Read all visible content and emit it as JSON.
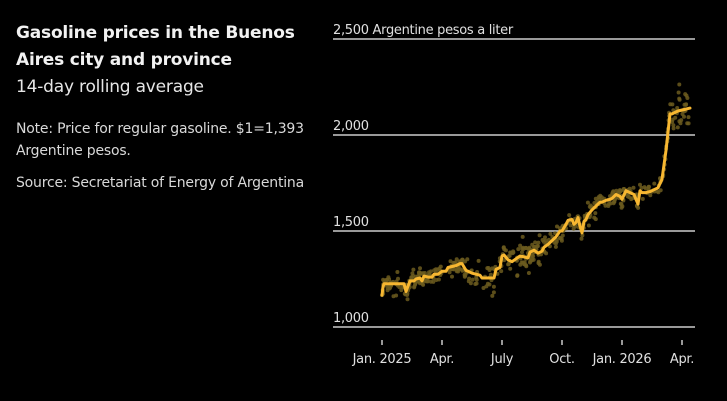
{
  "header": {
    "title": "Gasoline prices in the Buenos Aires city and province",
    "subtitle": "14-day rolling average",
    "note": "Note: Price for regular gasoline. $1=1,393 Argentine pesos.",
    "source": "Source: Secretariat of Energy of Argentina"
  },
  "colors": {
    "background": "#000000",
    "line": "#f7b731",
    "dots": "#6b5a1e",
    "grid": "#cccccc"
  },
  "chart_data": {
    "type": "line",
    "title": "Gasoline prices in the Buenos Aires city and province",
    "subtitle": "14-day rolling average",
    "xlabel": "",
    "ylabel": "Argentine pesos a liter",
    "ylim": [
      1000,
      2500
    ],
    "yticks": [
      {
        "value": 2500,
        "label": "2,500 Argentine pesos a liter"
      },
      {
        "value": 2000,
        "label": "2,000"
      },
      {
        "value": 1500,
        "label": "1,500"
      },
      {
        "value": 1000,
        "label": "1,000"
      }
    ],
    "xlim": [
      -0.05,
      15.4
    ],
    "xticks": [
      {
        "value": 0,
        "label": "Jan. 2025"
      },
      {
        "value": 3,
        "label": "Apr."
      },
      {
        "value": 6,
        "label": "July"
      },
      {
        "value": 9,
        "label": "Oct."
      },
      {
        "value": 12,
        "label": "Jan. 2026"
      },
      {
        "value": 15,
        "label": "Apr."
      }
    ],
    "x_unit": "months since Jan. 2025",
    "grid": true,
    "legend": "none",
    "series": [
      {
        "name": "14-day rolling average",
        "x": [
          0.0,
          0.05,
          0.1,
          0.4,
          0.8,
          1.1,
          1.2,
          1.4,
          1.6,
          1.7,
          1.9,
          2.0,
          2.1,
          2.3,
          2.5,
          2.6,
          2.8,
          3.0,
          3.2,
          3.3,
          3.5,
          3.7,
          3.9,
          4.0,
          4.2,
          4.3,
          4.5,
          4.7,
          4.9,
          5.0,
          5.2,
          5.4,
          5.6,
          5.7,
          5.9,
          6.0,
          6.1,
          6.3,
          6.5,
          6.7,
          6.9,
          7.1,
          7.3,
          7.4,
          7.6,
          7.8,
          8.0,
          8.1,
          8.3,
          8.5,
          8.7,
          8.9,
          9.0,
          9.2,
          9.3,
          9.5,
          9.6,
          9.7,
          9.8,
          9.9,
          10.0,
          10.1,
          10.2,
          10.3,
          10.5,
          10.7,
          10.9,
          11.0,
          11.2,
          11.4,
          11.5,
          11.7,
          11.9,
          12.0,
          12.2,
          12.4,
          12.6,
          12.8,
          12.9,
          13.0,
          13.2,
          13.4,
          13.6,
          13.8,
          14.0,
          14.2,
          14.4,
          14.5,
          14.6,
          14.8,
          15.0,
          15.2,
          15.4
        ],
        "values": [
          1165,
          1210,
          1225,
          1225,
          1225,
          1225,
          1185,
          1240,
          1240,
          1250,
          1255,
          1240,
          1265,
          1260,
          1260,
          1275,
          1275,
          1290,
          1290,
          1310,
          1315,
          1320,
          1330,
          1330,
          1295,
          1290,
          1280,
          1275,
          1270,
          1255,
          1255,
          1255,
          1255,
          1300,
          1310,
          1370,
          1375,
          1350,
          1340,
          1355,
          1370,
          1365,
          1360,
          1390,
          1400,
          1385,
          1395,
          1415,
          1430,
          1450,
          1470,
          1500,
          1500,
          1535,
          1555,
          1560,
          1535,
          1545,
          1570,
          1525,
          1490,
          1550,
          1560,
          1585,
          1610,
          1630,
          1650,
          1650,
          1660,
          1665,
          1670,
          1690,
          1680,
          1665,
          1710,
          1700,
          1690,
          1640,
          1710,
          1700,
          1700,
          1705,
          1715,
          1725,
          1770,
          1920,
          2110,
          2110,
          2115,
          2125,
          2130,
          2135,
          2140
        ]
      }
    ],
    "annotations": []
  }
}
